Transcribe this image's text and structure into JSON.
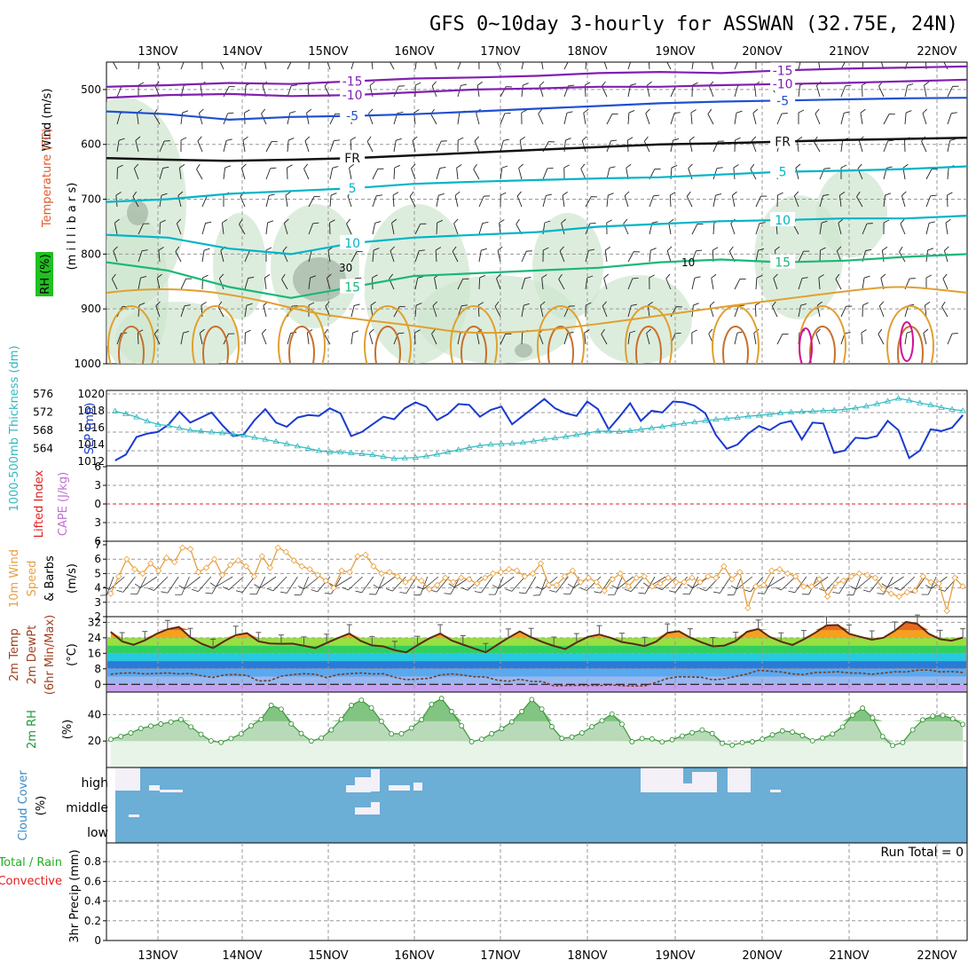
{
  "title": "GFS 0~10day 3-hourly for ASSWAN (32.75E, 24N)",
  "days": [
    "13NOV",
    "14NOV",
    "15NOV",
    "16NOV",
    "17NOV",
    "18NOV",
    "19NOV",
    "20NOV",
    "21NOV",
    "22NOV"
  ],
  "colors": {
    "temp_pos": "#e0a030",
    "temp_pos2": "#c8702c",
    "temp_hot": "#d0109a",
    "temp_neg": "#2050d0",
    "temp_neg2": "#8020b0",
    "cyan": "#00b4c8",
    "green": "#18b878",
    "rh_fill": "#cfe6cf",
    "slp": "#1a3ad0",
    "thk": "#30b8c0",
    "wind10": "#e8a040",
    "cloud": "#6baed6",
    "cloud_gap": "#f3f0f7",
    "rh2m": "#1a9a3a",
    "red": "#e02020"
  },
  "chart_data": [
    {
      "id": "upper_air",
      "type": "contour",
      "ylabel_parts": [
        "Wind (m/s)",
        "Temperature (°C)",
        "RH (%)"
      ],
      "yaxis_title": "(m i l l i b a r s)",
      "yticks": [
        500,
        600,
        700,
        800,
        900,
        1000
      ],
      "ylim": [
        450,
        1000
      ],
      "isotherm_labels": [
        "-15",
        "-10",
        "-5",
        "FR",
        "5",
        "10",
        "15",
        "30",
        "10"
      ],
      "isotherms": [
        {
          "label": "-15",
          "color": "neg2",
          "values": [
            495,
            492,
            488,
            490,
            485,
            480,
            478,
            475,
            470,
            468,
            470,
            465,
            462,
            460,
            458
          ]
        },
        {
          "label": "-10",
          "color": "neg2",
          "values": [
            515,
            510,
            508,
            512,
            510,
            505,
            500,
            498,
            495,
            495,
            492,
            490,
            488,
            485,
            482
          ]
        },
        {
          "label": "-5",
          "color": "neg",
          "values": [
            540,
            545,
            555,
            550,
            548,
            545,
            540,
            535,
            530,
            525,
            522,
            520,
            518,
            516,
            515
          ]
        },
        {
          "label": "FR",
          "color": "black",
          "values": [
            625,
            628,
            630,
            628,
            625,
            620,
            615,
            610,
            605,
            600,
            598,
            595,
            592,
            590,
            588
          ]
        },
        {
          "label": "5",
          "color": "cyan",
          "values": [
            705,
            700,
            690,
            685,
            680,
            672,
            668,
            665,
            662,
            660,
            655,
            650,
            648,
            645,
            640
          ]
        },
        {
          "label": "10",
          "color": "cyan",
          "values": [
            765,
            770,
            790,
            800,
            780,
            770,
            765,
            760,
            750,
            745,
            740,
            738,
            735,
            735,
            730
          ]
        },
        {
          "label": "15",
          "color": "green",
          "values": [
            815,
            830,
            860,
            880,
            860,
            840,
            835,
            830,
            825,
            815,
            810,
            815,
            812,
            805,
            800
          ]
        }
      ]
    },
    {
      "id": "slp_thickness",
      "type": "line",
      "ylabel_left": "1000-500mb Thickness (dm)",
      "ylabel_right": "SLP (mb)",
      "yticks_left": [
        "576",
        "572",
        "568",
        "564"
      ],
      "yticks_right": [
        "1020",
        "1018",
        "1016",
        "1014",
        "1012"
      ],
      "series": [
        {
          "name": "SLP (mb)",
          "color": "slp",
          "values": [
            1012.1,
            1012.8,
            1014.9,
            1015.3,
            1015.5,
            1016.4,
            1017.9,
            1016.6,
            1017.2,
            1017.8,
            1016.3,
            1015.0,
            1015.2,
            1016.9,
            1018.2,
            1016.6,
            1016.1,
            1017.2,
            1017.5,
            1017.4,
            1018.3,
            1017.7,
            1015.0,
            1015.5,
            1016.4,
            1017.3,
            1017.0,
            1018.3,
            1019.0,
            1018.5,
            1016.9,
            1017.6,
            1018.8,
            1018.7,
            1017.3,
            1018.1,
            1018.5,
            1016.4,
            1017.4,
            1018.4,
            1019.4,
            1018.3,
            1017.7,
            1017.4,
            1019.1,
            1018.2,
            1015.8,
            1017.3,
            1018.9,
            1016.8,
            1018.0,
            1017.8,
            1019.1,
            1019.0,
            1018.6,
            1017.7,
            1015.1,
            1013.5,
            1014.0,
            1015.3,
            1016.2,
            1015.7,
            1016.5,
            1016.8,
            1014.6,
            1016.6,
            1016.5,
            1013.0,
            1013.3,
            1014.8,
            1014.7,
            1015.0,
            1016.8,
            1015.7,
            1012.4,
            1013.3,
            1015.8,
            1015.6,
            1016.0,
            1017.5
          ]
        },
        {
          "name": "Thickness (dm)",
          "color": "thk",
          "values": [
            572.2,
            571.6,
            570.9,
            570.0,
            569.3,
            569.0,
            568.5,
            568.0,
            567.8,
            567.6,
            567.4,
            567.2,
            566.9,
            566.4,
            566.0,
            565.5,
            565.0,
            564.5,
            564.0,
            563.5,
            563.2,
            563.2,
            563.0,
            562.8,
            562.6,
            562.2,
            561.8,
            561.9,
            562.0,
            562.3,
            562.7,
            563.2,
            563.7,
            564.2,
            564.6,
            564.9,
            565.0,
            565.1,
            565.3,
            565.6,
            566.0,
            566.3,
            566.6,
            567.0,
            567.4,
            567.8,
            567.8,
            567.7,
            567.9,
            568.2,
            568.5,
            568.8,
            569.2,
            569.5,
            569.8,
            570.1,
            570.4,
            570.6,
            570.8,
            571.1,
            571.3,
            571.5,
            571.8,
            572.0,
            572.1,
            572.2,
            572.3,
            572.4,
            572.6,
            572.9,
            573.3,
            573.8,
            574.4,
            575.0,
            574.6,
            574.0,
            573.6,
            573.0,
            572.6,
            572.3
          ]
        }
      ]
    },
    {
      "id": "cape_li",
      "type": "line",
      "ylabel_parts": [
        "Lifted Index",
        "CAPE (J/kg)"
      ],
      "yticks": [
        "6",
        "3",
        "0",
        "3",
        "6"
      ],
      "series": []
    },
    {
      "id": "wind10m",
      "type": "line",
      "ylabel_parts": [
        "10m Wind",
        "Speed",
        "& Barbs",
        "(m/s)"
      ],
      "yticks": [
        "7",
        "6",
        "5",
        "4",
        "3",
        "2"
      ],
      "ylim": [
        2,
        7
      ],
      "series": [
        {
          "name": "10m wind speed (m/s)",
          "color": "wind10",
          "values": [
            3.6,
            4.8,
            6.0,
            5.3,
            5.0,
            5.7,
            5.2,
            6.1,
            5.8,
            6.8,
            6.7,
            5.1,
            5.4,
            6.0,
            4.9,
            5.6,
            5.9,
            5.5,
            4.8,
            6.2,
            5.4,
            6.8,
            6.5,
            5.9,
            5.5,
            5.3,
            4.9,
            4.5,
            4.0,
            5.2,
            5.1,
            6.2,
            6.3,
            5.5,
            5.0,
            5.1,
            4.8,
            4.4,
            4.7,
            4.5,
            3.9,
            4.2,
            4.7,
            4.4,
            4.7,
            4.6,
            4.3,
            4.7,
            5.0,
            5.1,
            5.3,
            5.2,
            4.8,
            5.0,
            5.7,
            4.2,
            4.2,
            4.8,
            5.2,
            4.4,
            4.7,
            4.4,
            3.8,
            4.6,
            5.0,
            4.1,
            4.7,
            4.8,
            4.1,
            4.3,
            4.7,
            4.4,
            4.4,
            4.7,
            4.4,
            4.8,
            4.7,
            5.5,
            4.6,
            5.1,
            2.6,
            4.1,
            4.2,
            5.2,
            5.3,
            5.0,
            4.8,
            4.1,
            4.1,
            4.6,
            3.4,
            4.3,
            4.5,
            4.8,
            5.0,
            4.9,
            4.7,
            3.9,
            3.6,
            3.4,
            3.7,
            3.8,
            4.8,
            4.4,
            4.3,
            2.4,
            4.7,
            4.1
          ]
        }
      ]
    },
    {
      "id": "temp2m",
      "type": "area",
      "ylabel_parts": [
        "2m Temp",
        "2m DewPt",
        "(6hr Min/Max)",
        "(°C)"
      ],
      "yticks": [
        "32",
        "24",
        "16",
        "8",
        "0"
      ],
      "ylim": [
        -4,
        34
      ],
      "series": [
        {
          "name": "2m Temp (°C)",
          "values": [
            27.1,
            22.1,
            20.4,
            22.7,
            26.0,
            28.4,
            29.6,
            24.3,
            20.9,
            18.7,
            22.3,
            25.4,
            26.4,
            22.2,
            21.1,
            20.9,
            21.0,
            19.9,
            18.7,
            21.3,
            23.9,
            26.2,
            22.4,
            20.1,
            19.6,
            17.6,
            16.5,
            20.2,
            23.6,
            26.2,
            22.6,
            20.5,
            18.5,
            16.5,
            20.3,
            24.0,
            27.3,
            24.3,
            21.8,
            19.8,
            18.2,
            21.6,
            24.5,
            25.7,
            24.0,
            21.8,
            20.9,
            19.7,
            22.0,
            26.6,
            27.4,
            24.1,
            21.7,
            19.6,
            20.0,
            22.3,
            27.1,
            28.6,
            24.5,
            22.0,
            20.3,
            23.2,
            26.6,
            30.4,
            30.6,
            26.1,
            24.5,
            23.0,
            24.0,
            27.6,
            32.2,
            31.2,
            26.1,
            23.3,
            22.5,
            24.1
          ]
        },
        {
          "name": "2m DewPt (°C)",
          "values": [
            5.2,
            5.8,
            5.9,
            5.4,
            5.6,
            5.9,
            5.4,
            5.6,
            4.4,
            3.5,
            4.9,
            5.0,
            4.6,
            1.7,
            1.9,
            4.2,
            5.0,
            5.5,
            5.2,
            3.4,
            5.0,
            5.5,
            5.9,
            5.4,
            5.5,
            3.6,
            2.4,
            2.7,
            3.1,
            4.8,
            5.4,
            4.8,
            3.9,
            3.8,
            2.2,
            1.6,
            2.6,
            1.5,
            1.4,
            -0.8,
            -0.6,
            -0.5,
            -0.5,
            -0.6,
            -0.3,
            -0.7,
            -0.9,
            -0.8,
            1.0,
            3.0,
            3.9,
            3.8,
            3.6,
            2.3,
            2.8,
            4.1,
            5.3,
            7.2,
            6.8,
            6.4,
            5.4,
            5.0,
            6.1,
            6.2,
            6.5,
            5.9,
            5.8,
            5.2,
            5.8,
            6.5,
            6.4,
            7.3,
            7.4,
            6.4,
            6.6,
            6.1
          ]
        }
      ]
    },
    {
      "id": "rh2m",
      "type": "area",
      "ylabel_parts": [
        "2m RH",
        "(%)"
      ],
      "yticks": [
        "40",
        "20"
      ],
      "ylim": [
        0,
        55
      ],
      "series": [
        {
          "name": "2m RH (%)",
          "values": [
            21.3,
            23.5,
            26.1,
            29.5,
            31.3,
            32.9,
            34.4,
            36.3,
            30.7,
            25.1,
            20.1,
            19.0,
            21.9,
            25.4,
            31.5,
            36.4,
            47.0,
            44.1,
            33.0,
            25.7,
            20.0,
            22.3,
            28.4,
            36.4,
            47.0,
            50.9,
            45.1,
            34.9,
            25.4,
            25.6,
            29.8,
            36.1,
            47.8,
            52.2,
            42.3,
            31.5,
            19.5,
            21.4,
            25.6,
            29.3,
            34.5,
            42.3,
            51.4,
            44.2,
            30.9,
            22.0,
            23.0,
            26.1,
            30.8,
            35.4,
            40.5,
            32.7,
            19.5,
            21.9,
            21.6,
            19.3,
            21.0,
            23.8,
            26.3,
            28.4,
            25.7,
            18.3,
            16.9,
            18.8,
            19.4,
            21.4,
            24.7,
            27.7,
            26.8,
            24.2,
            20.2,
            22.3,
            25.3,
            30.6,
            39.5,
            44.9,
            37.5,
            23.4,
            16.6,
            18.9,
            28.5,
            36.0,
            38.8,
            39.4,
            36.8,
            32.6
          ]
        }
      ]
    },
    {
      "id": "cloud_cover",
      "type": "bar",
      "ylabel_parts": [
        "Cloud Cover",
        "(%)"
      ],
      "levels": [
        "high",
        "middle",
        "low"
      ]
    },
    {
      "id": "precip",
      "type": "bar",
      "ylabel_parts": [
        "Total / Rain",
        "Convective",
        "3hr Precip (mm)"
      ],
      "yticks": [
        "0.8",
        "0.6",
        "0.4",
        "0.2",
        "0"
      ],
      "run_total": "Run Total = 0",
      "values": []
    }
  ]
}
